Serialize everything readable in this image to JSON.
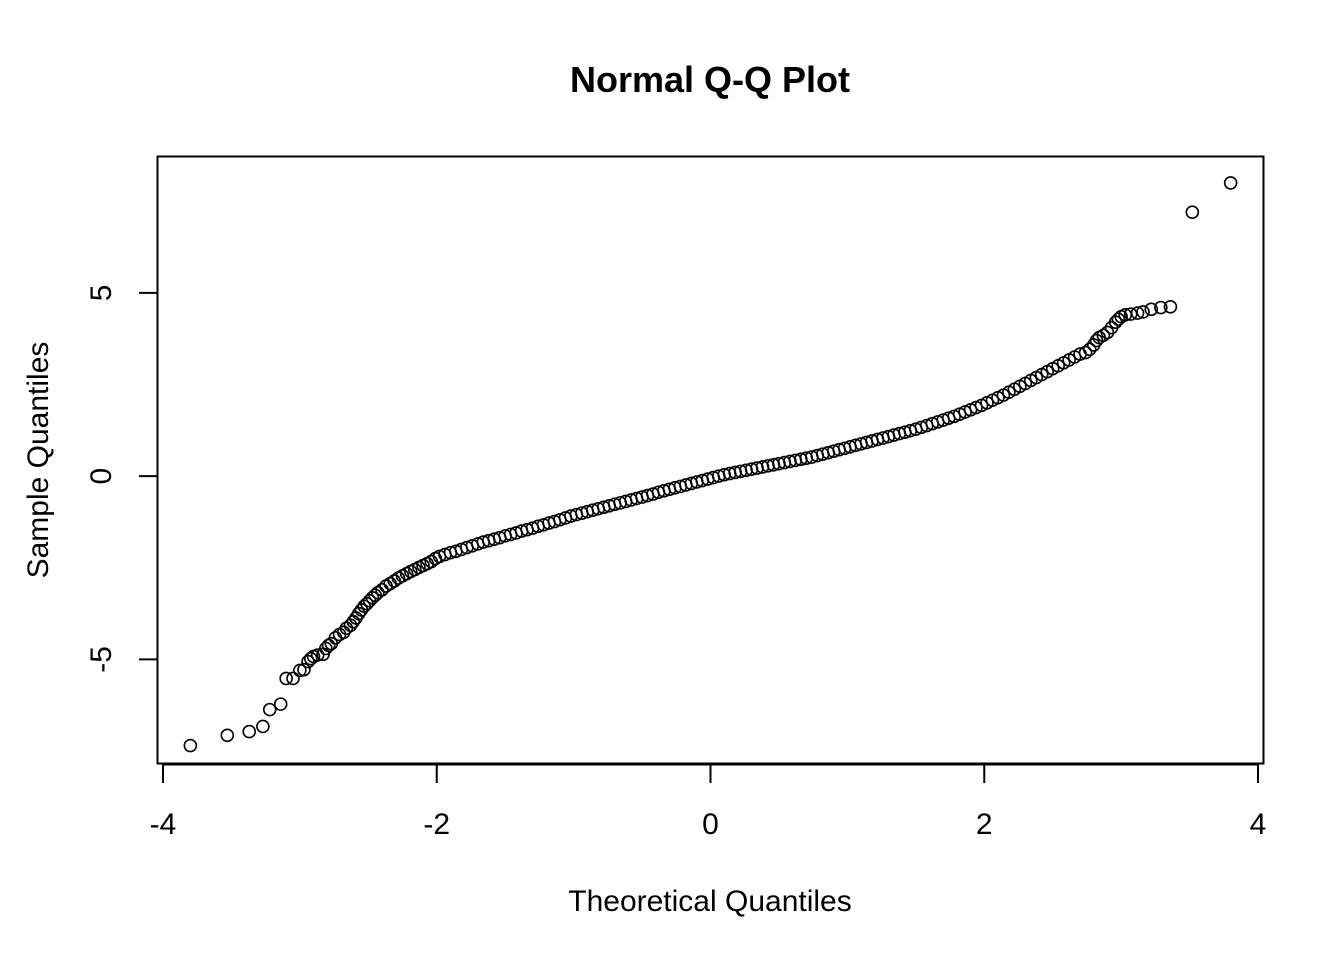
{
  "chart_data": {
    "type": "scatter",
    "title": "Normal Q-Q Plot",
    "xlabel": "Theoretical Quantiles",
    "ylabel": "Sample Quantiles",
    "xlim": [
      -4.04,
      4.04
    ],
    "ylim": [
      -7.84,
      8.72
    ],
    "x_ticks": [
      -4,
      -2,
      0,
      2,
      4
    ],
    "x_tick_labels": [
      "-4",
      "-2",
      "0",
      "2",
      "4"
    ],
    "y_ticks": [
      -5,
      0,
      5
    ],
    "y_tick_labels": [
      "-5",
      "0",
      "5"
    ],
    "grid": false,
    "legend": "none",
    "marker": "open-circle",
    "marker_color": "#000000",
    "series": [
      {
        "points": [
          [
            -3.8,
            -7.35
          ],
          [
            -3.53,
            -7.07
          ],
          [
            -3.37,
            -6.97
          ],
          [
            -3.27,
            -6.83
          ],
          [
            -3.22,
            -6.37
          ],
          [
            -3.14,
            -6.22
          ],
          [
            -3.1,
            -5.52
          ],
          [
            -3.05,
            -5.52
          ],
          [
            -3.0,
            -5.3
          ],
          [
            -2.97,
            -5.28
          ],
          [
            -2.94,
            -5.06
          ],
          [
            -2.92,
            -4.98
          ],
          [
            -2.9,
            -4.92
          ],
          [
            -2.87,
            -4.88
          ],
          [
            -2.83,
            -4.86
          ],
          [
            -2.81,
            -4.7
          ],
          [
            -2.79,
            -4.62
          ],
          [
            -2.77,
            -4.57
          ],
          [
            -2.74,
            -4.41
          ],
          [
            -2.71,
            -4.32
          ],
          [
            -2.68,
            -4.26
          ],
          [
            -2.66,
            -4.15
          ],
          [
            -2.63,
            -4.07
          ],
          [
            -2.61,
            -3.97
          ],
          [
            -2.59,
            -3.87
          ],
          [
            -2.57,
            -3.75
          ],
          [
            -2.55,
            -3.65
          ],
          [
            -2.53,
            -3.55
          ],
          [
            -2.51,
            -3.48
          ],
          [
            -2.49,
            -3.4
          ],
          [
            -2.47,
            -3.32
          ],
          [
            -2.45,
            -3.25
          ],
          [
            -2.43,
            -3.18
          ],
          [
            -2.4,
            -3.1
          ],
          [
            -2.37,
            -3.0
          ],
          [
            -2.34,
            -2.93
          ],
          [
            -2.31,
            -2.86
          ],
          [
            -2.28,
            -2.78
          ],
          [
            -2.25,
            -2.72
          ],
          [
            -2.22,
            -2.66
          ],
          [
            -2.19,
            -2.6
          ],
          [
            -2.16,
            -2.55
          ],
          [
            -2.13,
            -2.49
          ],
          [
            -2.1,
            -2.44
          ],
          [
            -2.07,
            -2.39
          ],
          [
            -2.04,
            -2.33
          ],
          [
            -2.01,
            -2.25
          ],
          [
            -1.98,
            -2.19
          ],
          [
            -1.94,
            -2.14
          ],
          [
            -1.9,
            -2.09
          ],
          [
            -1.86,
            -2.05
          ],
          [
            -1.82,
            -2.0
          ],
          [
            -1.78,
            -1.95
          ],
          [
            -1.74,
            -1.9
          ],
          [
            -1.7,
            -1.85
          ],
          [
            -1.66,
            -1.8
          ],
          [
            -1.62,
            -1.76
          ],
          [
            -1.58,
            -1.72
          ],
          [
            -1.54,
            -1.68
          ],
          [
            -1.5,
            -1.63
          ],
          [
            -1.46,
            -1.59
          ],
          [
            -1.42,
            -1.55
          ],
          [
            -1.38,
            -1.5
          ],
          [
            -1.34,
            -1.46
          ],
          [
            -1.3,
            -1.42
          ],
          [
            -1.26,
            -1.37
          ],
          [
            -1.22,
            -1.33
          ],
          [
            -1.18,
            -1.28
          ],
          [
            -1.14,
            -1.24
          ],
          [
            -1.1,
            -1.19
          ],
          [
            -1.06,
            -1.14
          ],
          [
            -1.02,
            -1.09
          ],
          [
            -0.98,
            -1.05
          ],
          [
            -0.94,
            -1.01
          ],
          [
            -0.9,
            -0.97
          ],
          [
            -0.86,
            -0.93
          ],
          [
            -0.82,
            -0.89
          ],
          [
            -0.78,
            -0.85
          ],
          [
            -0.74,
            -0.81
          ],
          [
            -0.7,
            -0.77
          ],
          [
            -0.66,
            -0.73
          ],
          [
            -0.62,
            -0.69
          ],
          [
            -0.58,
            -0.65
          ],
          [
            -0.54,
            -0.61
          ],
          [
            -0.5,
            -0.57
          ],
          [
            -0.46,
            -0.53
          ],
          [
            -0.42,
            -0.49
          ],
          [
            -0.38,
            -0.44
          ],
          [
            -0.34,
            -0.4
          ],
          [
            -0.3,
            -0.36
          ],
          [
            -0.26,
            -0.32
          ],
          [
            -0.22,
            -0.28
          ],
          [
            -0.18,
            -0.24
          ],
          [
            -0.14,
            -0.2
          ],
          [
            -0.1,
            -0.16
          ],
          [
            -0.06,
            -0.12
          ],
          [
            -0.02,
            -0.08
          ],
          [
            0.02,
            -0.04
          ],
          [
            0.06,
            0.0
          ],
          [
            0.1,
            0.04
          ],
          [
            0.14,
            0.07
          ],
          [
            0.18,
            0.1
          ],
          [
            0.22,
            0.13
          ],
          [
            0.26,
            0.16
          ],
          [
            0.3,
            0.19
          ],
          [
            0.34,
            0.22
          ],
          [
            0.38,
            0.25
          ],
          [
            0.42,
            0.28
          ],
          [
            0.46,
            0.31
          ],
          [
            0.5,
            0.34
          ],
          [
            0.54,
            0.37
          ],
          [
            0.58,
            0.4
          ],
          [
            0.62,
            0.43
          ],
          [
            0.66,
            0.46
          ],
          [
            0.7,
            0.49
          ],
          [
            0.74,
            0.52
          ],
          [
            0.78,
            0.56
          ],
          [
            0.82,
            0.6
          ],
          [
            0.86,
            0.64
          ],
          [
            0.9,
            0.68
          ],
          [
            0.94,
            0.72
          ],
          [
            0.98,
            0.76
          ],
          [
            1.02,
            0.8
          ],
          [
            1.06,
            0.84
          ],
          [
            1.1,
            0.88
          ],
          [
            1.14,
            0.92
          ],
          [
            1.18,
            0.96
          ],
          [
            1.22,
            1.0
          ],
          [
            1.26,
            1.04
          ],
          [
            1.3,
            1.08
          ],
          [
            1.34,
            1.12
          ],
          [
            1.38,
            1.16
          ],
          [
            1.42,
            1.2
          ],
          [
            1.46,
            1.24
          ],
          [
            1.5,
            1.28
          ],
          [
            1.54,
            1.33
          ],
          [
            1.58,
            1.38
          ],
          [
            1.62,
            1.43
          ],
          [
            1.66,
            1.48
          ],
          [
            1.7,
            1.53
          ],
          [
            1.74,
            1.58
          ],
          [
            1.78,
            1.63
          ],
          [
            1.82,
            1.69
          ],
          [
            1.86,
            1.75
          ],
          [
            1.9,
            1.81
          ],
          [
            1.94,
            1.87
          ],
          [
            1.98,
            1.93
          ],
          [
            2.02,
            2.0
          ],
          [
            2.06,
            2.07
          ],
          [
            2.1,
            2.14
          ],
          [
            2.14,
            2.21
          ],
          [
            2.18,
            2.29
          ],
          [
            2.22,
            2.37
          ],
          [
            2.26,
            2.45
          ],
          [
            2.3,
            2.53
          ],
          [
            2.34,
            2.61
          ],
          [
            2.38,
            2.69
          ],
          [
            2.42,
            2.77
          ],
          [
            2.46,
            2.85
          ],
          [
            2.5,
            2.93
          ],
          [
            2.54,
            3.01
          ],
          [
            2.58,
            3.09
          ],
          [
            2.62,
            3.17
          ],
          [
            2.66,
            3.25
          ],
          [
            2.7,
            3.33
          ],
          [
            2.74,
            3.37
          ],
          [
            2.77,
            3.46
          ],
          [
            2.8,
            3.58
          ],
          [
            2.82,
            3.7
          ],
          [
            2.84,
            3.78
          ],
          [
            2.87,
            3.84
          ],
          [
            2.9,
            3.92
          ],
          [
            2.93,
            4.05
          ],
          [
            2.96,
            4.2
          ],
          [
            2.98,
            4.28
          ],
          [
            3.0,
            4.35
          ],
          [
            3.03,
            4.4
          ],
          [
            3.07,
            4.42
          ],
          [
            3.12,
            4.45
          ],
          [
            3.16,
            4.48
          ],
          [
            3.22,
            4.55
          ],
          [
            3.29,
            4.6
          ],
          [
            3.36,
            4.62
          ],
          [
            3.52,
            7.2
          ],
          [
            3.8,
            8.0
          ]
        ]
      }
    ]
  }
}
